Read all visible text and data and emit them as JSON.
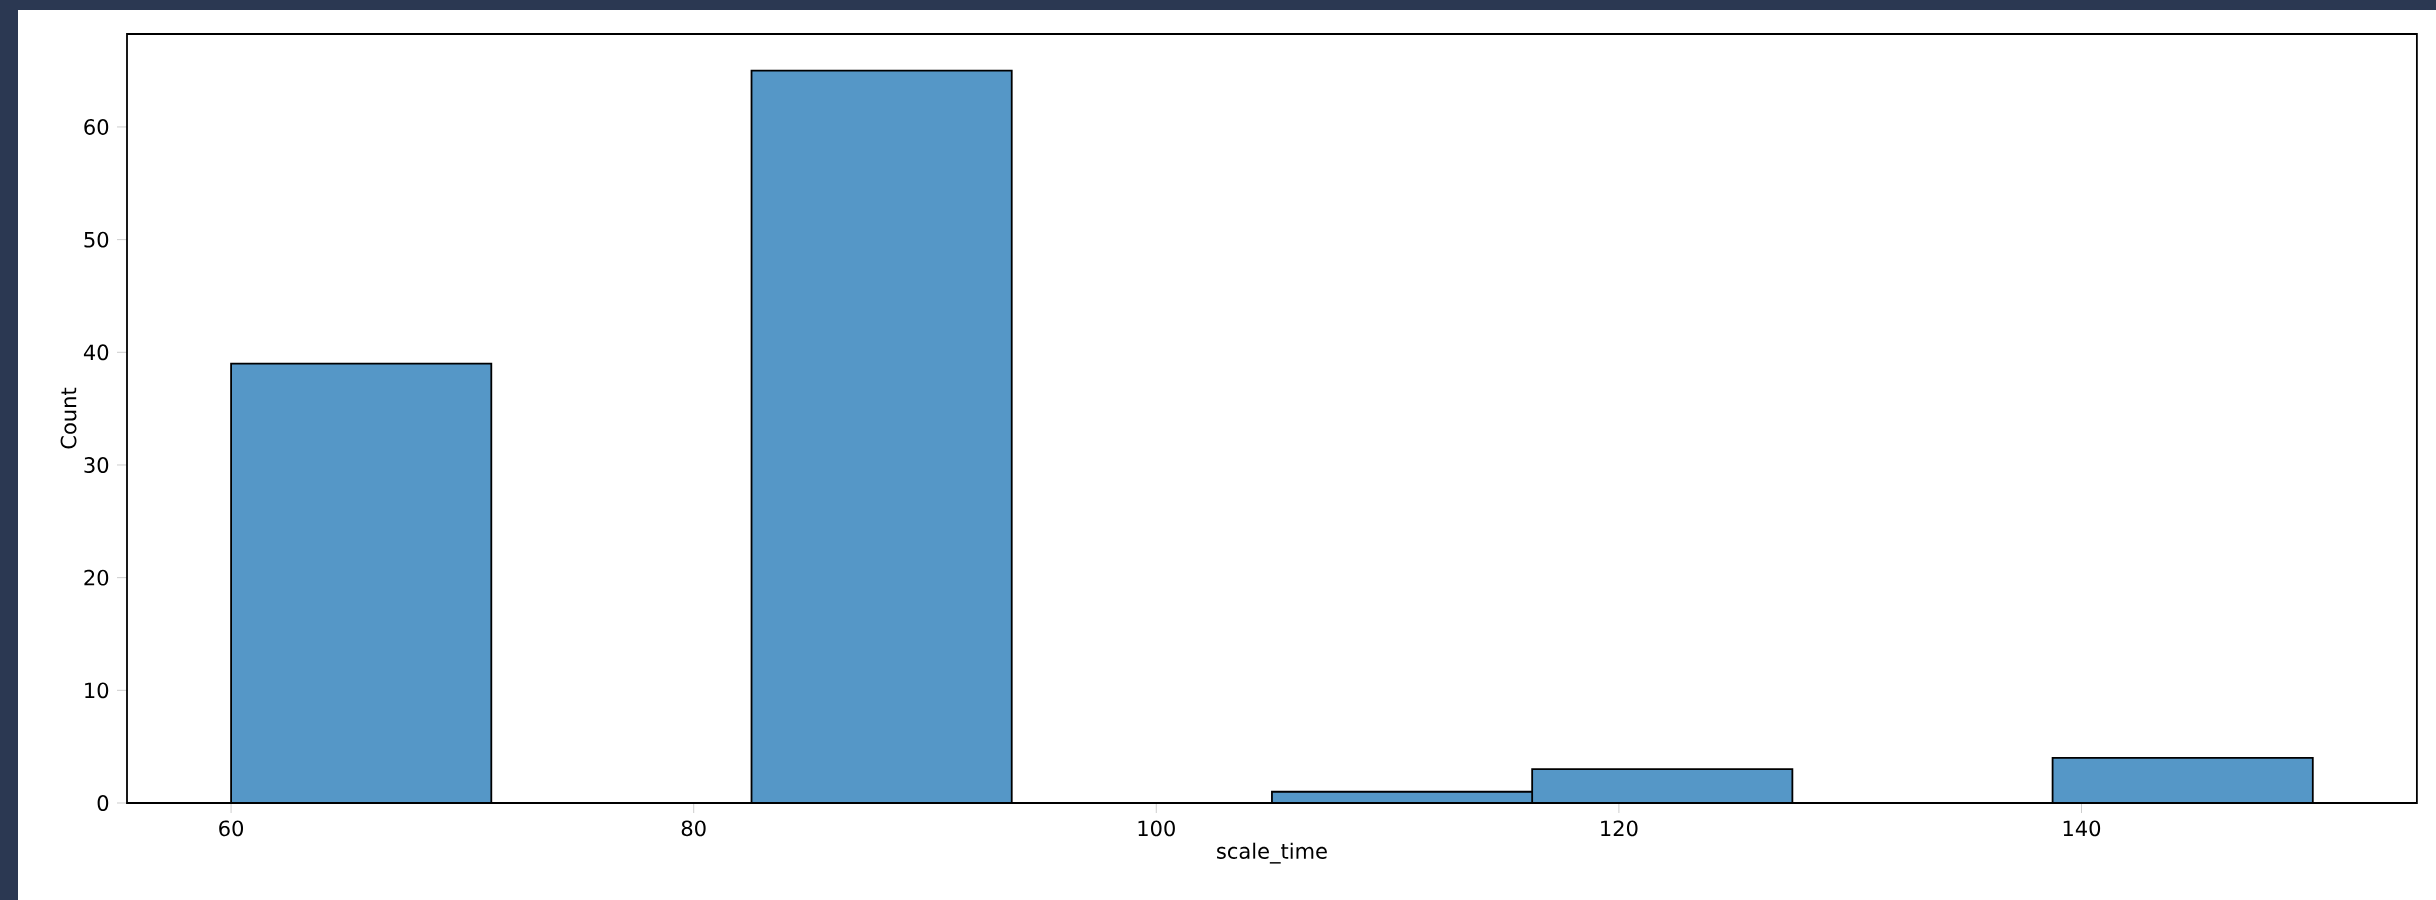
{
  "chart_data": {
    "type": "histogram",
    "xlabel": "scale_time",
    "ylabel": "Count",
    "bins": [
      60,
      71.25,
      82.5,
      93.75,
      105,
      116.25,
      127.5,
      138.75,
      150
    ],
    "values": [
      39,
      0,
      65,
      0,
      1,
      3,
      0,
      4
    ],
    "color": "#5597c7",
    "xlim": [
      55.5,
      154.5
    ],
    "ylim": [
      0,
      68.25
    ],
    "xticks": [
      60,
      80,
      100,
      120,
      140
    ],
    "yticks": [
      0,
      10,
      20,
      30,
      40,
      50,
      60
    ]
  }
}
